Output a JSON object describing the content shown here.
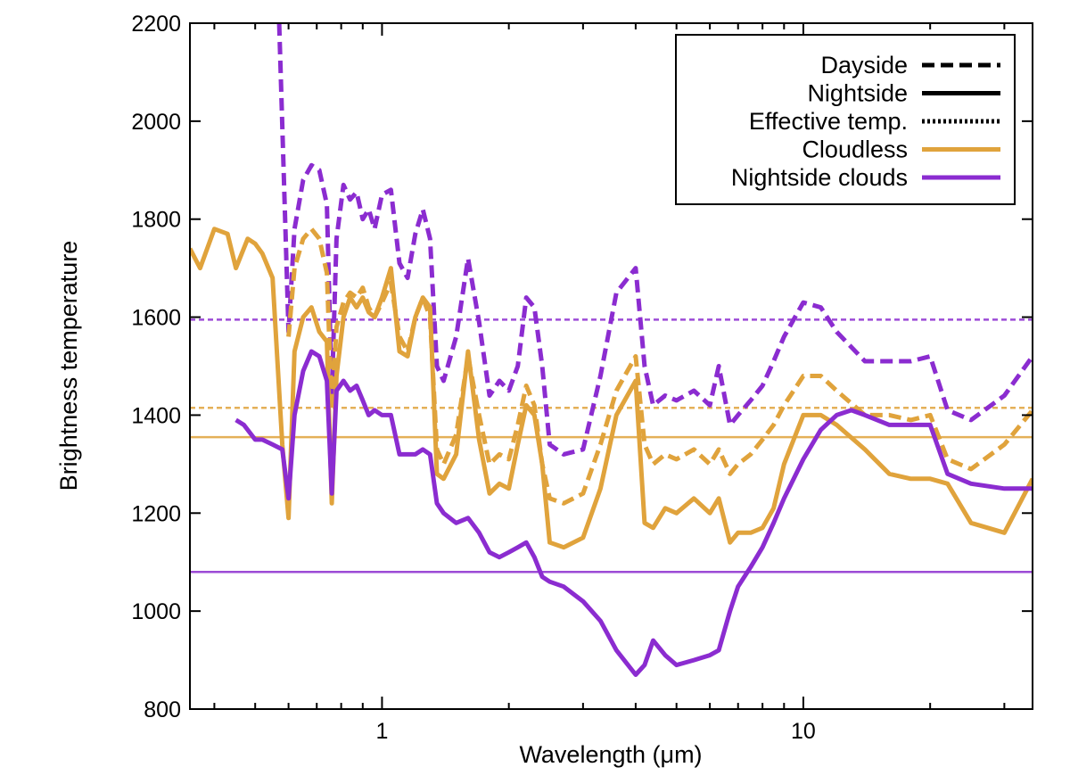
{
  "chart_data": {
    "type": "line",
    "title": "",
    "xlabel": "Wavelength (μm)",
    "ylabel": "Brightness temperature",
    "xscale": "log",
    "xlim": [
      0.35,
      35
    ],
    "ylim": [
      800,
      2200
    ],
    "x_ticks": [
      {
        "value": 1,
        "label": "1"
      },
      {
        "value": 10,
        "label": "10"
      }
    ],
    "y_ticks": [
      {
        "value": 800,
        "label": "800"
      },
      {
        "value": 1000,
        "label": "1000"
      },
      {
        "value": 1200,
        "label": "1200"
      },
      {
        "value": 1400,
        "label": "1400"
      },
      {
        "value": 1600,
        "label": "1600"
      },
      {
        "value": 1800,
        "label": "1800"
      },
      {
        "value": 2000,
        "label": "2000"
      },
      {
        "value": 2200,
        "label": "2200"
      }
    ],
    "grid": false,
    "legend_position": "top-right",
    "colors": {
      "cloudless": "#E0A33C",
      "nightside_clouds": "#8B2CD0",
      "axis": "#000000"
    },
    "legend": [
      {
        "label": "Dayside",
        "style": "dashed",
        "color": "#000000"
      },
      {
        "label": "Nightside",
        "style": "solid",
        "color": "#000000"
      },
      {
        "label": "Effective temp.",
        "style": "dotted",
        "color": "#000000"
      },
      {
        "label": "Cloudless",
        "style": "solid",
        "color": "#E0A33C"
      },
      {
        "label": "Nightside clouds",
        "style": "solid",
        "color": "#8B2CD0"
      }
    ],
    "effective_temps": [
      {
        "name": "effective-temp-dayside-clouds",
        "series": "Nightside clouds",
        "side": "dayside",
        "value": 1595
      },
      {
        "name": "effective-temp-dayside-cloudless",
        "series": "Cloudless",
        "side": "dayside",
        "value": 1415
      },
      {
        "name": "effective-temp-nightside-cloudless",
        "series": "Cloudless",
        "side": "nightside",
        "value": 1355
      },
      {
        "name": "effective-temp-nightside-clouds",
        "series": "Nightside clouds",
        "side": "nightside",
        "value": 1080
      }
    ],
    "series": [
      {
        "name": "Nightside clouds (dayside)",
        "group": "Nightside clouds",
        "side": "dayside",
        "style": "dashed",
        "x": [
          0.57,
          0.6,
          0.62,
          0.65,
          0.68,
          0.71,
          0.74,
          0.76,
          0.78,
          0.81,
          0.84,
          0.87,
          0.9,
          0.93,
          0.96,
          1.0,
          1.05,
          1.1,
          1.15,
          1.2,
          1.25,
          1.3,
          1.35,
          1.4,
          1.5,
          1.6,
          1.7,
          1.8,
          1.9,
          2.0,
          2.1,
          2.2,
          2.3,
          2.4,
          2.5,
          2.7,
          3.0,
          3.3,
          3.6,
          4.0,
          4.2,
          4.4,
          4.7,
          5.0,
          5.5,
          6.0,
          6.3,
          6.7,
          7.0,
          7.5,
          8.0,
          8.5,
          9.0,
          10.0,
          11.0,
          12.0,
          14.0,
          16.0,
          18.0,
          20.0,
          22.0,
          25.0,
          30.0,
          35.0
        ],
        "y": [
          2200,
          1570,
          1780,
          1880,
          1910,
          1900,
          1830,
          1440,
          1760,
          1870,
          1840,
          1855,
          1800,
          1820,
          1780,
          1850,
          1860,
          1710,
          1680,
          1770,
          1820,
          1760,
          1500,
          1470,
          1560,
          1720,
          1590,
          1440,
          1470,
          1450,
          1500,
          1640,
          1620,
          1500,
          1340,
          1320,
          1330,
          1480,
          1650,
          1700,
          1500,
          1420,
          1440,
          1430,
          1450,
          1420,
          1500,
          1380,
          1400,
          1430,
          1460,
          1510,
          1560,
          1630,
          1620,
          1570,
          1510,
          1510,
          1510,
          1520,
          1410,
          1390,
          1440,
          1520
        ]
      },
      {
        "name": "Cloudless (dayside)",
        "group": "Cloudless",
        "side": "dayside",
        "style": "dashed",
        "x": [
          0.6,
          0.62,
          0.65,
          0.68,
          0.71,
          0.74,
          0.76,
          0.78,
          0.81,
          0.84,
          0.87,
          0.9,
          0.93,
          0.96,
          1.0,
          1.05,
          1.1,
          1.15,
          1.2,
          1.25,
          1.3,
          1.35,
          1.4,
          1.5,
          1.6,
          1.7,
          1.8,
          1.9,
          2.0,
          2.1,
          2.2,
          2.3,
          2.4,
          2.5,
          2.7,
          3.0,
          3.3,
          3.6,
          4.0,
          4.2,
          4.4,
          4.7,
          5.0,
          5.5,
          6.0,
          6.3,
          6.7,
          7.0,
          7.5,
          8.0,
          8.5,
          9.0,
          10.0,
          11.0,
          12.0,
          14.0,
          16.0,
          18.0,
          20.0,
          22.0,
          25.0,
          30.0,
          35.0
        ],
        "y": [
          1560,
          1700,
          1760,
          1780,
          1760,
          1690,
          1410,
          1580,
          1630,
          1650,
          1640,
          1660,
          1620,
          1600,
          1630,
          1670,
          1560,
          1530,
          1600,
          1640,
          1600,
          1330,
          1300,
          1360,
          1520,
          1400,
          1300,
          1320,
          1310,
          1380,
          1460,
          1420,
          1300,
          1230,
          1220,
          1240,
          1340,
          1450,
          1520,
          1340,
          1300,
          1320,
          1310,
          1330,
          1300,
          1330,
          1280,
          1300,
          1320,
          1350,
          1380,
          1420,
          1480,
          1480,
          1450,
          1400,
          1400,
          1390,
          1400,
          1310,
          1290,
          1340,
          1410
        ]
      },
      {
        "name": "Cloudless (nightside)",
        "group": "Cloudless",
        "side": "nightside",
        "style": "solid",
        "x": [
          0.35,
          0.37,
          0.4,
          0.43,
          0.45,
          0.48,
          0.5,
          0.52,
          0.55,
          0.58,
          0.6,
          0.62,
          0.65,
          0.68,
          0.71,
          0.74,
          0.76,
          0.78,
          0.81,
          0.84,
          0.87,
          0.9,
          0.93,
          0.96,
          1.0,
          1.05,
          1.1,
          1.15,
          1.2,
          1.25,
          1.3,
          1.35,
          1.4,
          1.5,
          1.6,
          1.7,
          1.8,
          1.9,
          2.0,
          2.1,
          2.2,
          2.3,
          2.4,
          2.5,
          2.7,
          3.0,
          3.3,
          3.6,
          4.0,
          4.2,
          4.4,
          4.7,
          5.0,
          5.5,
          6.0,
          6.3,
          6.7,
          7.0,
          7.5,
          8.0,
          8.5,
          9.0,
          10.0,
          11.0,
          12.0,
          14.0,
          16.0,
          18.0,
          20.0,
          22.0,
          25.0,
          30.0,
          35.0
        ],
        "y": [
          1740,
          1700,
          1780,
          1770,
          1700,
          1760,
          1750,
          1730,
          1680,
          1340,
          1190,
          1530,
          1600,
          1620,
          1570,
          1550,
          1220,
          1480,
          1600,
          1640,
          1620,
          1640,
          1610,
          1600,
          1640,
          1700,
          1530,
          1520,
          1600,
          1640,
          1620,
          1280,
          1270,
          1320,
          1530,
          1350,
          1240,
          1260,
          1250,
          1340,
          1420,
          1400,
          1300,
          1140,
          1130,
          1150,
          1250,
          1400,
          1470,
          1180,
          1170,
          1210,
          1200,
          1230,
          1200,
          1230,
          1140,
          1160,
          1160,
          1170,
          1210,
          1300,
          1400,
          1400,
          1380,
          1330,
          1280,
          1270,
          1270,
          1260,
          1180,
          1160,
          1270
        ]
      },
      {
        "name": "Nightside clouds (nightside)",
        "group": "Nightside clouds",
        "side": "nightside",
        "style": "solid",
        "x": [
          0.45,
          0.47,
          0.5,
          0.52,
          0.55,
          0.58,
          0.6,
          0.62,
          0.65,
          0.68,
          0.71,
          0.74,
          0.76,
          0.78,
          0.81,
          0.84,
          0.87,
          0.9,
          0.93,
          0.96,
          1.0,
          1.05,
          1.1,
          1.15,
          1.2,
          1.25,
          1.3,
          1.35,
          1.4,
          1.5,
          1.6,
          1.7,
          1.8,
          1.9,
          2.0,
          2.1,
          2.2,
          2.3,
          2.4,
          2.5,
          2.7,
          3.0,
          3.3,
          3.6,
          4.0,
          4.2,
          4.4,
          4.7,
          5.0,
          5.5,
          6.0,
          6.3,
          6.7,
          7.0,
          7.5,
          8.0,
          8.5,
          9.0,
          10.0,
          11.0,
          12.0,
          13.0,
          14.0,
          16.0,
          18.0,
          20.0,
          22.0,
          25.0,
          30.0,
          35.0
        ],
        "y": [
          1390,
          1380,
          1350,
          1350,
          1340,
          1330,
          1230,
          1400,
          1490,
          1530,
          1520,
          1470,
          1240,
          1450,
          1470,
          1450,
          1460,
          1430,
          1400,
          1410,
          1400,
          1400,
          1320,
          1320,
          1320,
          1330,
          1320,
          1220,
          1200,
          1180,
          1190,
          1160,
          1120,
          1110,
          1120,
          1130,
          1140,
          1110,
          1070,
          1060,
          1050,
          1020,
          980,
          920,
          870,
          890,
          940,
          910,
          890,
          900,
          910,
          920,
          1000,
          1050,
          1090,
          1130,
          1180,
          1230,
          1310,
          1370,
          1400,
          1410,
          1400,
          1380,
          1380,
          1380,
          1280,
          1260,
          1250,
          1250
        ]
      }
    ]
  }
}
